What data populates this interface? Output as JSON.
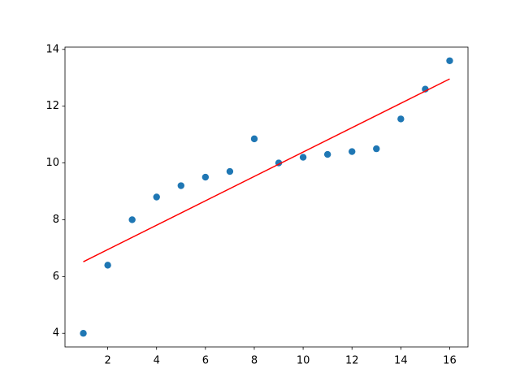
{
  "chart_data": {
    "type": "scatter",
    "x": [
      1,
      2,
      3,
      4,
      5,
      6,
      7,
      8,
      9,
      10,
      11,
      12,
      13,
      14,
      15,
      16
    ],
    "series": [
      {
        "type": "scatter",
        "color": "#1f77b4",
        "x": [
          1,
          2,
          3,
          4,
          5,
          6,
          7,
          8,
          9,
          10,
          11,
          12,
          13,
          14,
          15,
          16
        ],
        "values": [
          4.0,
          6.4,
          8.0,
          8.8,
          9.2,
          9.5,
          9.7,
          10.85,
          10.0,
          10.2,
          10.3,
          10.4,
          10.5,
          11.55,
          12.6,
          13.6
        ]
      },
      {
        "type": "line",
        "color": "#ff0000",
        "x": [
          1,
          16
        ],
        "values": [
          6.52,
          12.96
        ]
      }
    ],
    "xlim": [
      0.25,
      16.75
    ],
    "xticks": [
      2,
      4,
      6,
      8,
      10,
      12,
      14,
      16
    ],
    "ylim": [
      3.52,
      14.08
    ],
    "yticks": [
      4,
      6,
      8,
      10,
      12,
      14
    ],
    "grid": false
  }
}
